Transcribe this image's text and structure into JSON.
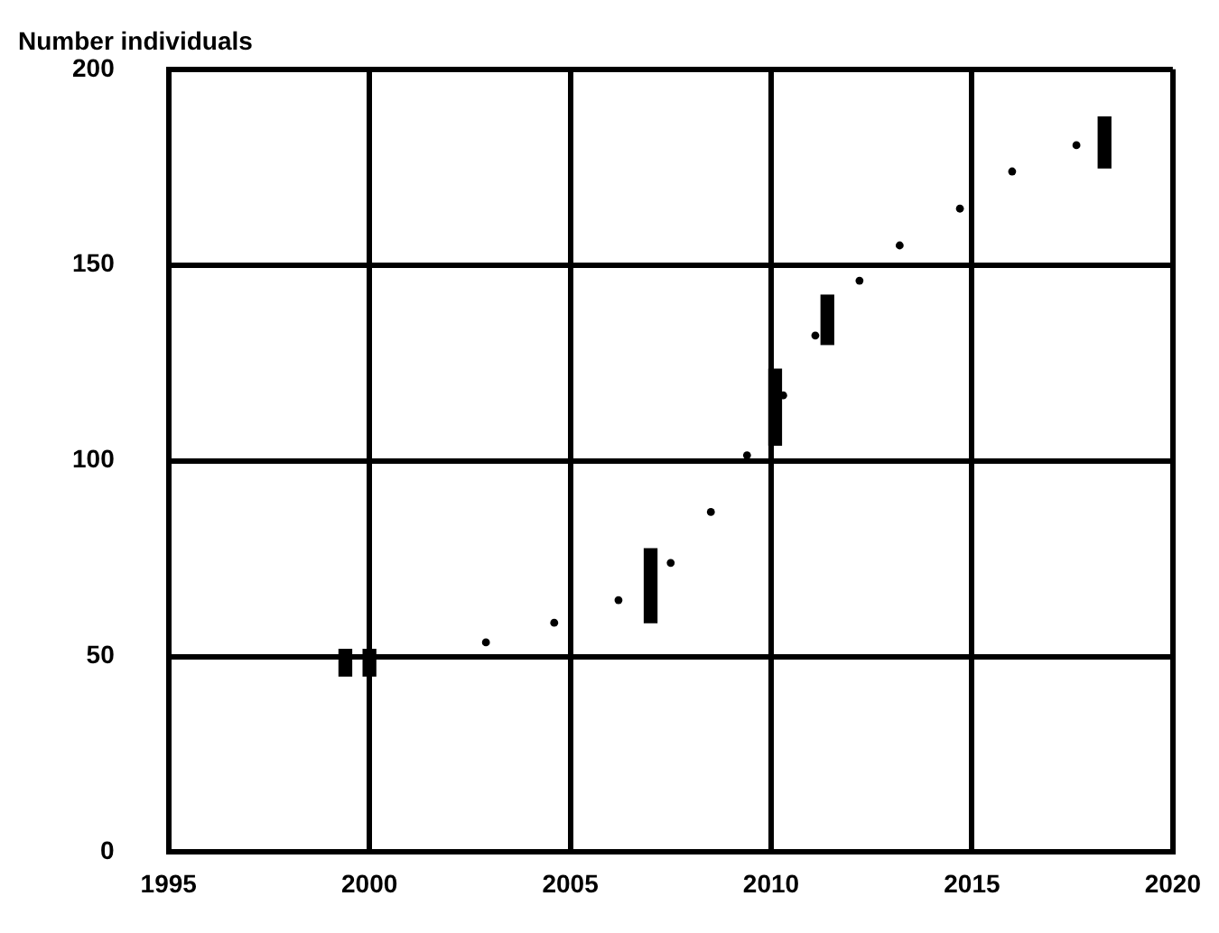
{
  "chart_data": {
    "type": "scatter",
    "ylabel": "Number individuals",
    "xlim": [
      1995,
      2020
    ],
    "xticks": [
      1995,
      2000,
      2005,
      2010,
      2015,
      2020
    ],
    "ylim": [
      0,
      200
    ],
    "yticks": [
      0,
      50,
      100,
      150,
      200
    ],
    "grid": true,
    "legend": false,
    "series": [
      {
        "type": "bar",
        "color": "#000000",
        "x": [
          1999.4,
          2000,
          2007,
          2010.1,
          2011.4,
          2018.3
        ],
        "base": [
          45,
          45,
          58.6,
          104,
          129.7,
          174.8
        ],
        "values": [
          6.8,
          6.8,
          18.9,
          19.4,
          12.6,
          13
        ]
      },
      {
        "color": "#000000",
        "marker": "circle",
        "x": [
          2002.9,
          2004.6,
          2006.2,
          2007.5,
          2008.5,
          2009.4,
          2010.3,
          2011.1,
          2012.2,
          2013.2,
          2014.7,
          2016,
          2017.6
        ],
        "values": [
          53.6,
          58.6,
          64.4,
          73.9,
          86.9,
          101.4,
          116.7,
          132,
          146,
          155,
          164.4,
          173.9,
          180.6
        ]
      }
    ]
  }
}
